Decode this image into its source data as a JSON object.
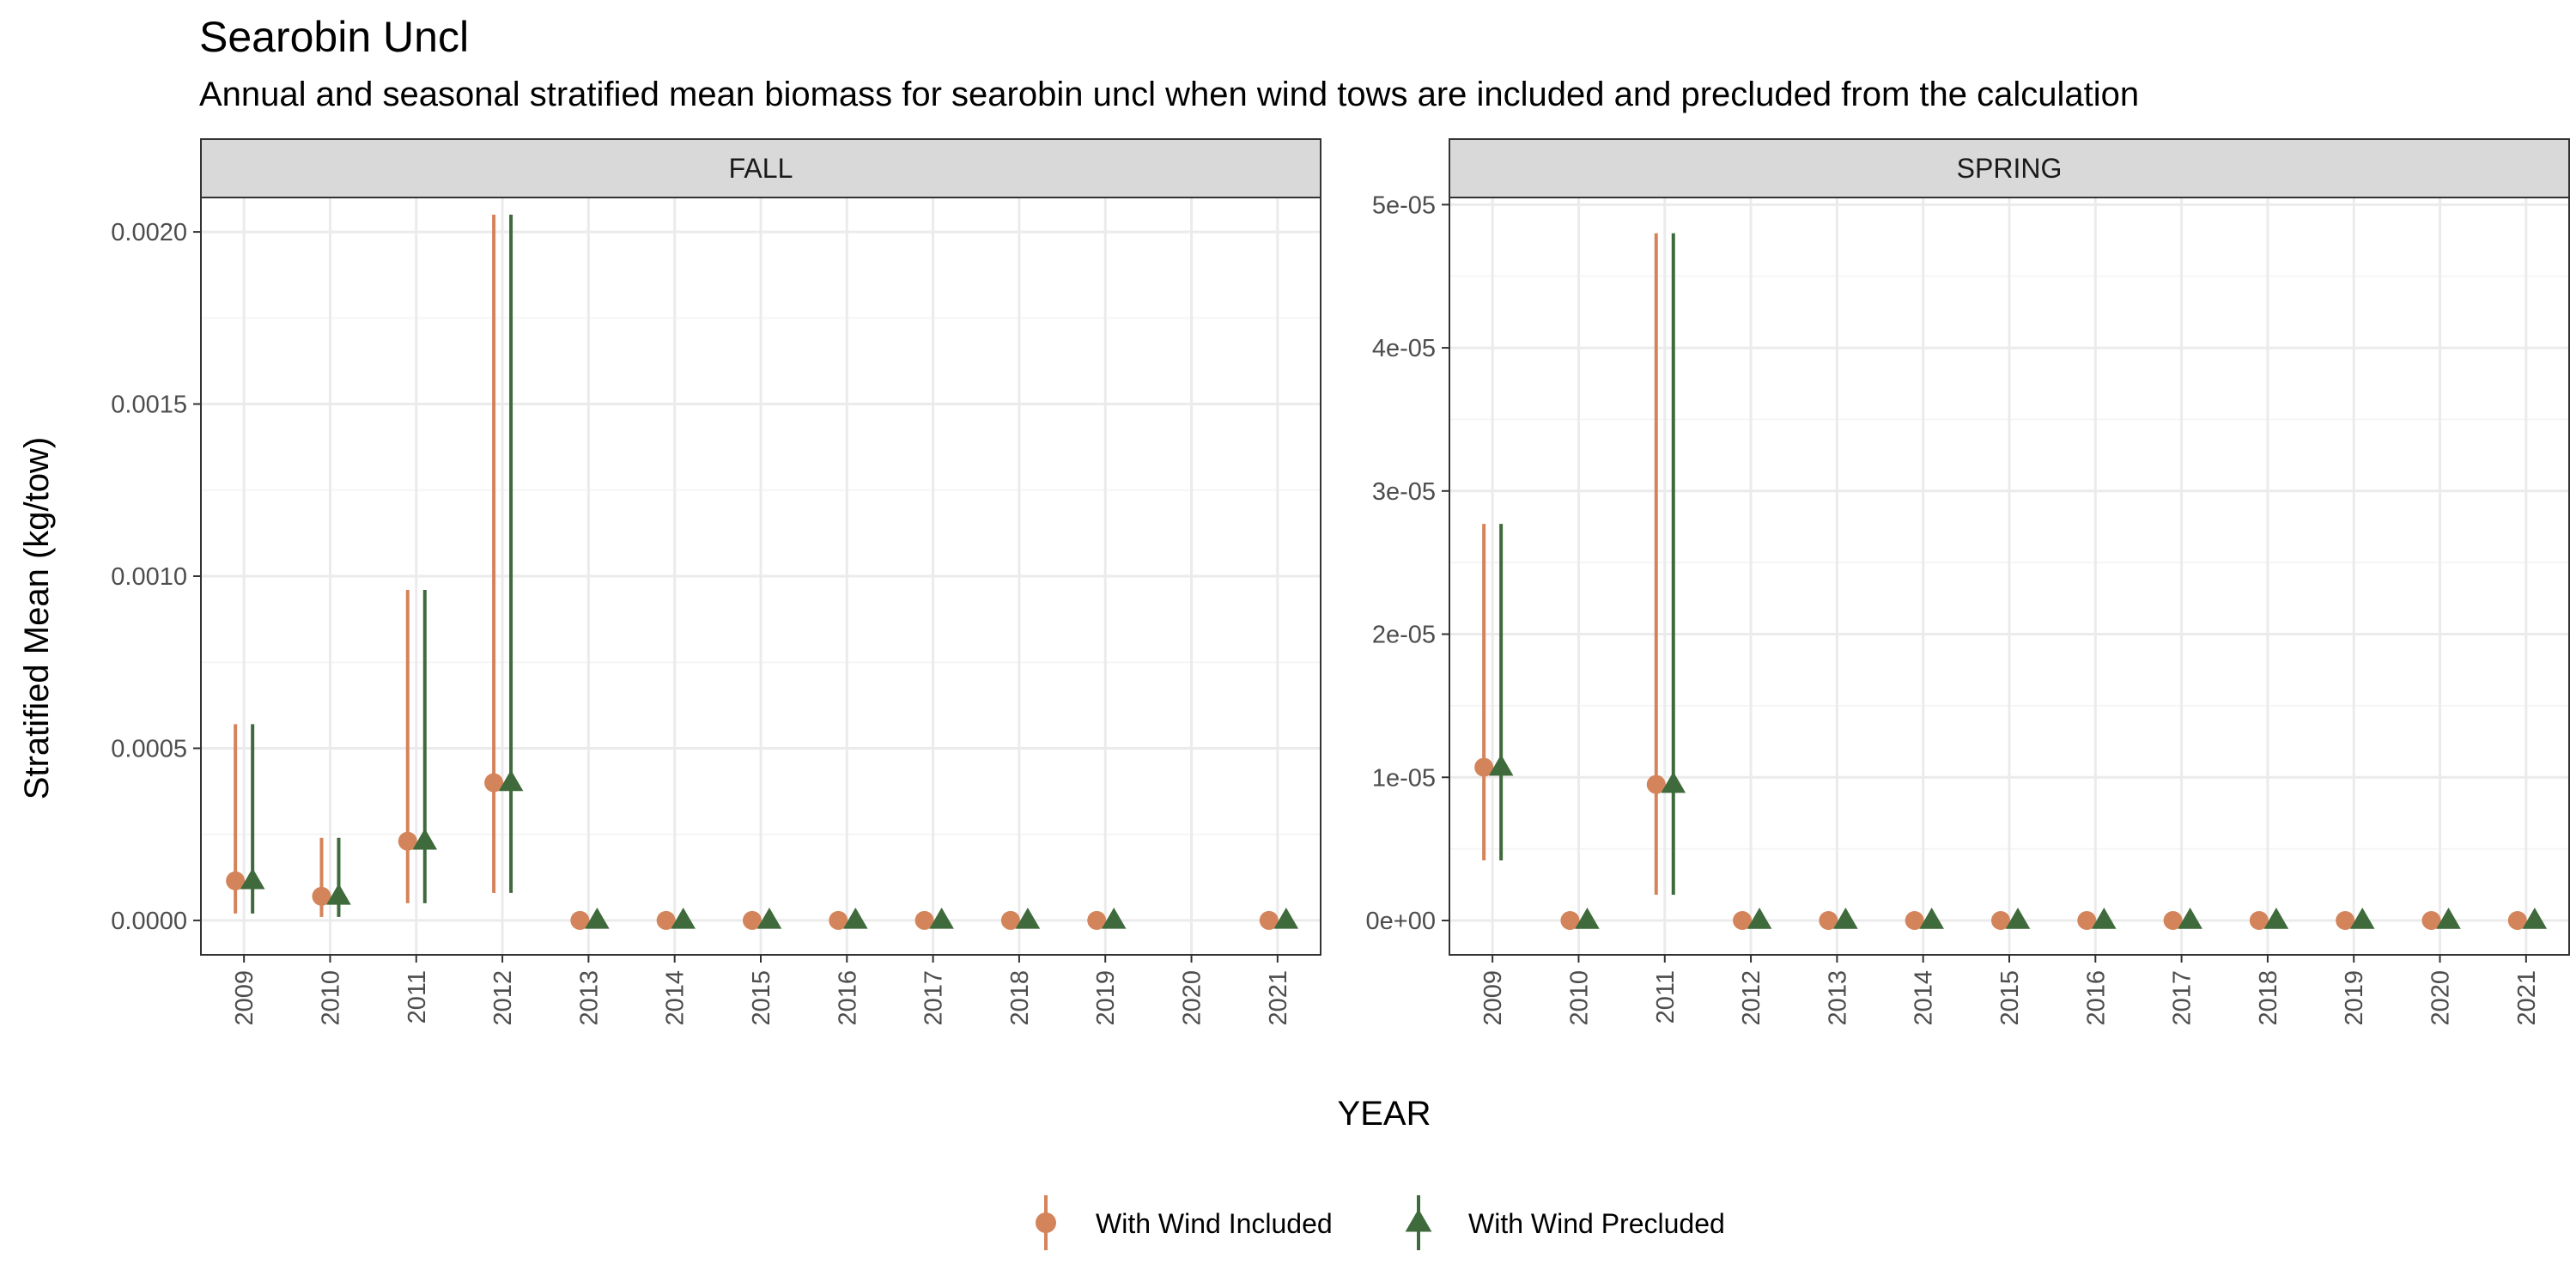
{
  "title": "Searobin Uncl",
  "subtitle": "Annual and seasonal stratified mean biomass for searobin uncl when wind tows are included and precluded from the calculation",
  "colors": {
    "included": "#D4845A",
    "precluded": "#3F6A3C",
    "strip_bg": "#D9D9D9",
    "grid_major": "#EBEBEB",
    "grid_minor": "#F5F5F5",
    "panel_border": "#333333"
  },
  "chart_data": {
    "type": "scatter",
    "title": "Searobin Uncl",
    "subtitle": "Annual and seasonal stratified mean biomass for searobin uncl when wind tows are included and precluded from the calculation",
    "xlabel": "YEAR",
    "ylabel": "Stratified Mean (kg/tow)",
    "grid": true,
    "legend_position": "bottom",
    "legend": [
      "With Wind Included",
      "With Wind Precluded"
    ],
    "panels": [
      {
        "name": "FALL",
        "x": [
          2009,
          2010,
          2011,
          2012,
          2013,
          2014,
          2015,
          2016,
          2017,
          2018,
          2019,
          2020,
          2021
        ],
        "ylim": [
          -0.0001,
          0.0021
        ],
        "yticks": [
          0.0,
          0.0005,
          0.001,
          0.0015,
          0.002
        ],
        "ytick_labels": [
          "0.0000",
          "0.0005",
          "0.0010",
          "0.0015",
          "0.0020"
        ],
        "series": [
          {
            "name": "With Wind Included",
            "marker": "circle",
            "points": [
              {
                "x": 2009,
                "y": 0.000115,
                "lo": 2e-05,
                "hi": 0.00057
              },
              {
                "x": 2010,
                "y": 7e-05,
                "lo": 1e-05,
                "hi": 0.00024
              },
              {
                "x": 2011,
                "y": 0.00023,
                "lo": 5e-05,
                "hi": 0.00096
              },
              {
                "x": 2012,
                "y": 0.0004,
                "lo": 8e-05,
                "hi": 0.00205
              },
              {
                "x": 2013,
                "y": 0.0,
                "lo": 0.0,
                "hi": 0.0
              },
              {
                "x": 2014,
                "y": 0.0,
                "lo": 0.0,
                "hi": 0.0
              },
              {
                "x": 2015,
                "y": 0.0,
                "lo": 0.0,
                "hi": 0.0
              },
              {
                "x": 2016,
                "y": 0.0,
                "lo": 0.0,
                "hi": 0.0
              },
              {
                "x": 2017,
                "y": 0.0,
                "lo": 0.0,
                "hi": 0.0
              },
              {
                "x": 2018,
                "y": 0.0,
                "lo": 0.0,
                "hi": 0.0
              },
              {
                "x": 2019,
                "y": 0.0,
                "lo": 0.0,
                "hi": 0.0
              },
              {
                "x": 2021,
                "y": 0.0,
                "lo": 0.0,
                "hi": 0.0
              }
            ]
          },
          {
            "name": "With Wind Precluded",
            "marker": "triangle",
            "points": [
              {
                "x": 2009,
                "y": 0.000115,
                "lo": 2e-05,
                "hi": 0.00057
              },
              {
                "x": 2010,
                "y": 7e-05,
                "lo": 1e-05,
                "hi": 0.00024
              },
              {
                "x": 2011,
                "y": 0.00023,
                "lo": 5e-05,
                "hi": 0.00096
              },
              {
                "x": 2012,
                "y": 0.0004,
                "lo": 8e-05,
                "hi": 0.00205
              },
              {
                "x": 2013,
                "y": 0.0,
                "lo": 0.0,
                "hi": 0.0
              },
              {
                "x": 2014,
                "y": 0.0,
                "lo": 0.0,
                "hi": 0.0
              },
              {
                "x": 2015,
                "y": 0.0,
                "lo": 0.0,
                "hi": 0.0
              },
              {
                "x": 2016,
                "y": 0.0,
                "lo": 0.0,
                "hi": 0.0
              },
              {
                "x": 2017,
                "y": 0.0,
                "lo": 0.0,
                "hi": 0.0
              },
              {
                "x": 2018,
                "y": 0.0,
                "lo": 0.0,
                "hi": 0.0
              },
              {
                "x": 2019,
                "y": 0.0,
                "lo": 0.0,
                "hi": 0.0
              },
              {
                "x": 2021,
                "y": 0.0,
                "lo": 0.0,
                "hi": 0.0
              }
            ]
          }
        ]
      },
      {
        "name": "SPRING",
        "x": [
          2009,
          2010,
          2011,
          2012,
          2013,
          2014,
          2015,
          2016,
          2017,
          2018,
          2019,
          2020,
          2021
        ],
        "ylim": [
          -2.4e-06,
          5.05e-05
        ],
        "yticks": [
          0.0,
          1e-05,
          2e-05,
          3e-05,
          4e-05,
          5e-05
        ],
        "ytick_labels": [
          "0e+00",
          "1e-05",
          "2e-05",
          "3e-05",
          "4e-05",
          "5e-05"
        ],
        "series": [
          {
            "name": "With Wind Included",
            "marker": "circle",
            "points": [
              {
                "x": 2009,
                "y": 1.07e-05,
                "lo": 4.2e-06,
                "hi": 2.77e-05
              },
              {
                "x": 2010,
                "y": 0.0,
                "lo": 0.0,
                "hi": 0.0
              },
              {
                "x": 2011,
                "y": 9.5e-06,
                "lo": 1.8e-06,
                "hi": 4.8e-05
              },
              {
                "x": 2012,
                "y": 0.0,
                "lo": 0.0,
                "hi": 0.0
              },
              {
                "x": 2013,
                "y": 0.0,
                "lo": 0.0,
                "hi": 0.0
              },
              {
                "x": 2014,
                "y": 0.0,
                "lo": 0.0,
                "hi": 0.0
              },
              {
                "x": 2015,
                "y": 0.0,
                "lo": 0.0,
                "hi": 0.0
              },
              {
                "x": 2016,
                "y": 0.0,
                "lo": 0.0,
                "hi": 0.0
              },
              {
                "x": 2017,
                "y": 0.0,
                "lo": 0.0,
                "hi": 0.0
              },
              {
                "x": 2018,
                "y": 0.0,
                "lo": 0.0,
                "hi": 0.0
              },
              {
                "x": 2019,
                "y": 0.0,
                "lo": 0.0,
                "hi": 0.0
              },
              {
                "x": 2020,
                "y": 0.0,
                "lo": 0.0,
                "hi": 0.0
              },
              {
                "x": 2021,
                "y": 0.0,
                "lo": 0.0,
                "hi": 0.0
              }
            ]
          },
          {
            "name": "With Wind Precluded",
            "marker": "triangle",
            "points": [
              {
                "x": 2009,
                "y": 1.07e-05,
                "lo": 4.2e-06,
                "hi": 2.77e-05
              },
              {
                "x": 2010,
                "y": 0.0,
                "lo": 0.0,
                "hi": 0.0
              },
              {
                "x": 2011,
                "y": 9.5e-06,
                "lo": 1.8e-06,
                "hi": 4.8e-05
              },
              {
                "x": 2012,
                "y": 0.0,
                "lo": 0.0,
                "hi": 0.0
              },
              {
                "x": 2013,
                "y": 0.0,
                "lo": 0.0,
                "hi": 0.0
              },
              {
                "x": 2014,
                "y": 0.0,
                "lo": 0.0,
                "hi": 0.0
              },
              {
                "x": 2015,
                "y": 0.0,
                "lo": 0.0,
                "hi": 0.0
              },
              {
                "x": 2016,
                "y": 0.0,
                "lo": 0.0,
                "hi": 0.0
              },
              {
                "x": 2017,
                "y": 0.0,
                "lo": 0.0,
                "hi": 0.0
              },
              {
                "x": 2018,
                "y": 0.0,
                "lo": 0.0,
                "hi": 0.0
              },
              {
                "x": 2019,
                "y": 0.0,
                "lo": 0.0,
                "hi": 0.0
              },
              {
                "x": 2020,
                "y": 0.0,
                "lo": 0.0,
                "hi": 0.0
              },
              {
                "x": 2021,
                "y": 0.0,
                "lo": 0.0,
                "hi": 0.0
              }
            ]
          }
        ]
      }
    ]
  }
}
